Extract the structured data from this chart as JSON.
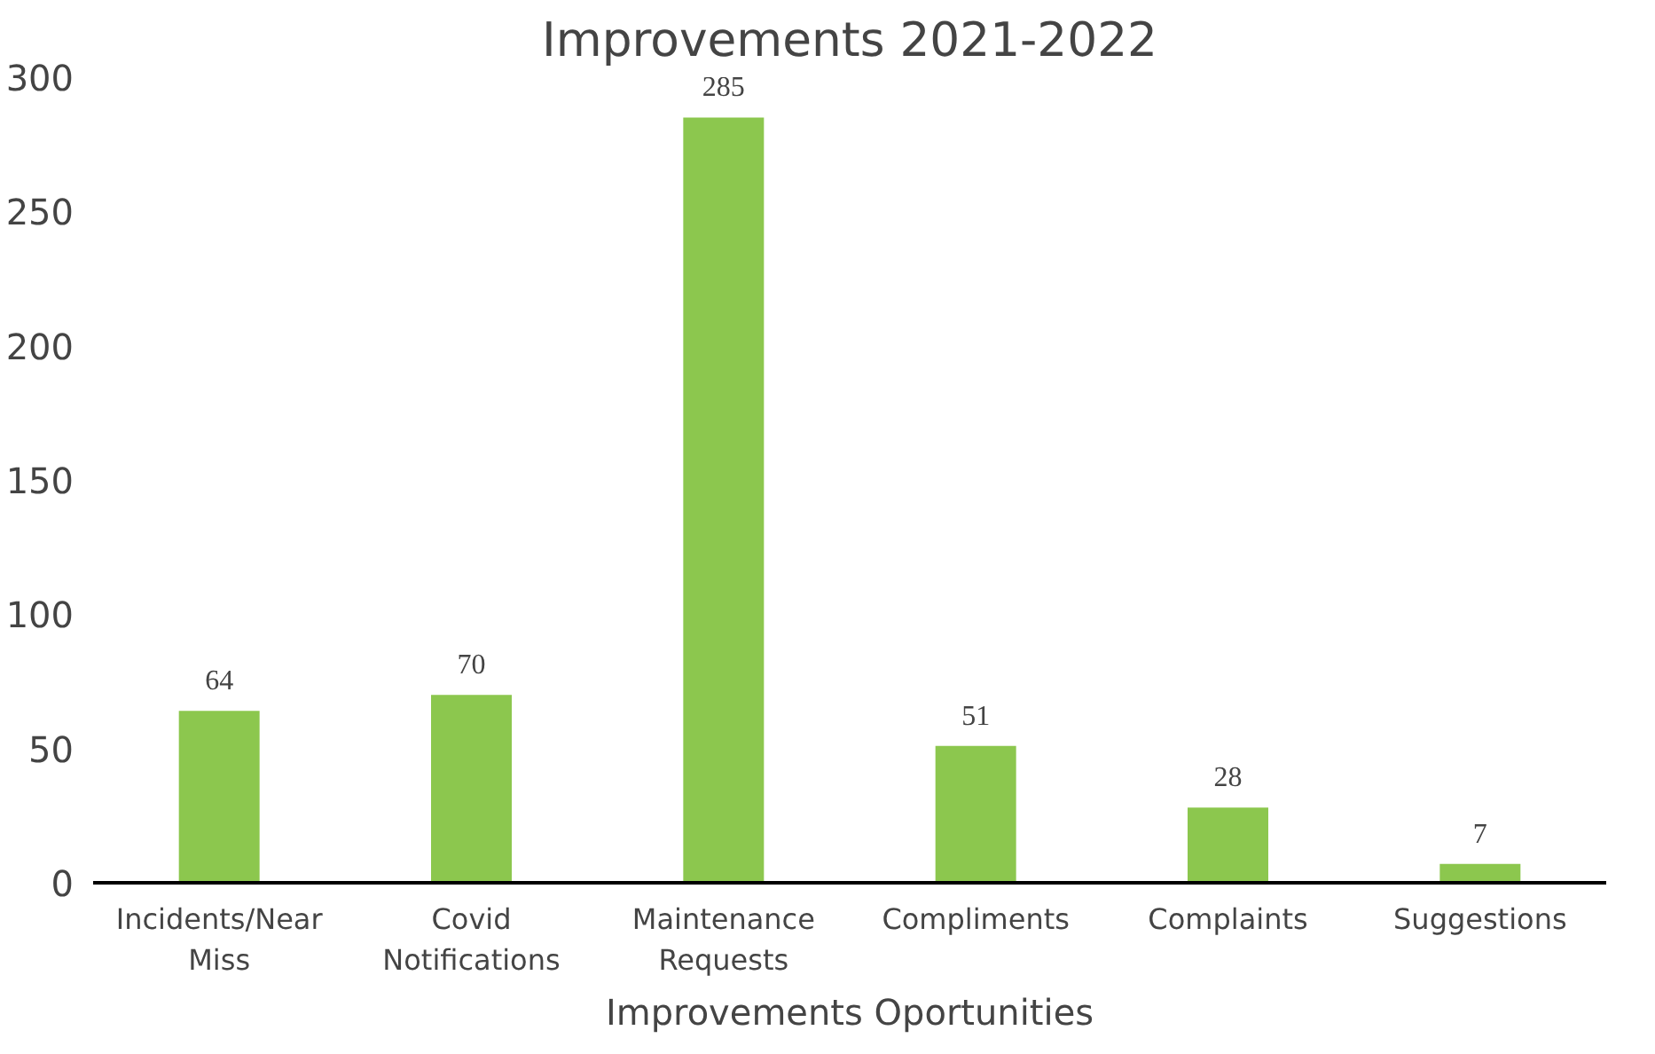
{
  "chart_data": {
    "type": "bar",
    "title": "Improvements 2021-2022",
    "xlabel": "Improvements Oportunities",
    "categories": [
      "Incidents/Near\nMiss",
      "Covid\nNotifications",
      "Maintenance\nRequests",
      "Compliments",
      "Complaints",
      "Suggestions"
    ],
    "values": [
      64,
      70,
      285,
      51,
      28,
      7
    ],
    "color": "#8cc74e",
    "ylim": [
      0,
      300
    ],
    "yticks": [
      0,
      50,
      100,
      150,
      200,
      250,
      300
    ],
    "grid": false,
    "data_labels": true
  }
}
